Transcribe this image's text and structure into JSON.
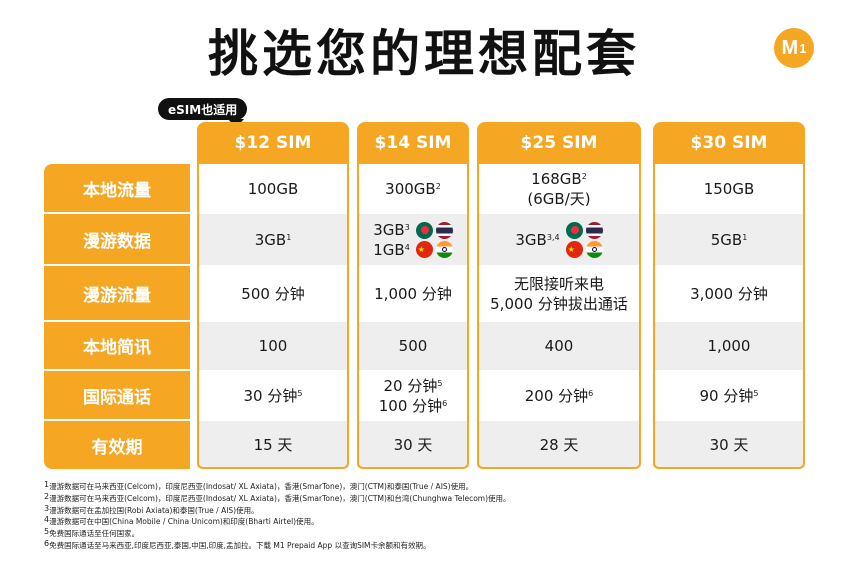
{
  "title": "挑选您的理想配套",
  "logo": {
    "letter": "M",
    "sub": "1"
  },
  "esim_badge": "eSIM也适用",
  "plans": [
    "$12 SIM",
    "$14 SIM",
    "$25 SIM",
    "$30 SIM"
  ],
  "rows": [
    {
      "label": "本地流量",
      "cells": [
        {
          "lines": [
            {
              "text": "100GB",
              "sup": ""
            }
          ]
        },
        {
          "lines": [
            {
              "text": "300GB",
              "sup": "2"
            }
          ]
        },
        {
          "lines": [
            {
              "text": "168GB",
              "sup": "2"
            },
            {
              "text": "(6GB/天)",
              "sup": ""
            }
          ]
        },
        {
          "lines": [
            {
              "text": "150GB",
              "sup": ""
            }
          ]
        }
      ]
    },
    {
      "label": "漫游数据",
      "cells": [
        {
          "lines": [
            {
              "text": "3GB",
              "sup": "1"
            }
          ]
        },
        {
          "lines": [
            {
              "text": "3GB",
              "sup": "3"
            },
            {
              "text": "1GB",
              "sup": "4"
            }
          ]
        },
        {
          "lines": [
            {
              "text": "3GB",
              "sup": "3,4"
            }
          ]
        },
        {
          "lines": [
            {
              "text": "5GB",
              "sup": "1"
            }
          ]
        }
      ]
    },
    {
      "label": "漫游流量",
      "cells": [
        {
          "lines": [
            {
              "text": "500 分钟",
              "sup": ""
            }
          ]
        },
        {
          "lines": [
            {
              "text": "1,000 分钟",
              "sup": ""
            }
          ]
        },
        {
          "lines": [
            {
              "text": "无限接听来电",
              "sup": ""
            },
            {
              "text": "5,000 分钟拔出通话",
              "sup": ""
            }
          ]
        },
        {
          "lines": [
            {
              "text": "3,000 分钟",
              "sup": ""
            }
          ]
        }
      ]
    },
    {
      "label": "本地简讯",
      "cells": [
        {
          "lines": [
            {
              "text": "100",
              "sup": ""
            }
          ]
        },
        {
          "lines": [
            {
              "text": "500",
              "sup": ""
            }
          ]
        },
        {
          "lines": [
            {
              "text": "400",
              "sup": ""
            }
          ]
        },
        {
          "lines": [
            {
              "text": "1,000",
              "sup": ""
            }
          ]
        }
      ]
    },
    {
      "label": "国际通话",
      "cells": [
        {
          "lines": [
            {
              "text": "30 分钟",
              "sup": "5"
            }
          ]
        },
        {
          "lines": [
            {
              "text": "20 分钟",
              "sup": "5"
            },
            {
              "text": "100 分钟",
              "sup": "6"
            }
          ]
        },
        {
          "lines": [
            {
              "text": "200 分钟",
              "sup": "6"
            }
          ]
        },
        {
          "lines": [
            {
              "text": "90 分钟",
              "sup": "5"
            }
          ]
        }
      ]
    },
    {
      "label": "有效期",
      "cells": [
        {
          "lines": [
            {
              "text": "15 天",
              "sup": ""
            }
          ]
        },
        {
          "lines": [
            {
              "text": "30 天",
              "sup": ""
            }
          ]
        },
        {
          "lines": [
            {
              "text": "28 天",
              "sup": ""
            }
          ]
        },
        {
          "lines": [
            {
              "text": "30 天",
              "sup": ""
            }
          ]
        }
      ]
    }
  ],
  "footnotes": [
    {
      "num": "1",
      "text": "漫游数据可在马来西亚(Celcom)，印度尼西亚(Indosat/ XL Axiata)，香港(SmarTone)，澳门(CTM)和泰国(True / AIS)使用。"
    },
    {
      "num": "2",
      "text": "漫游数据可在马来西亚(Celcom)，印度尼西亚(Indosat/ XL Axiata)，香港(SmarTone)，澳门(CTM)和台湾(Chunghwa Telecom)使用。"
    },
    {
      "num": "3",
      "text": "漫游数据可在孟加拉国(Robi Axiata)和泰国(True / AIS)使用。"
    },
    {
      "num": "4",
      "text": "漫游数据可在中国(China Mobile / China Unicom)和印度(Bharti Airtel)使用。"
    },
    {
      "num": "5",
      "text": "免费国际通话至任何国家。"
    },
    {
      "num": "6",
      "text": "免费国际通话至马来西亚,印度尼西亚,泰国,中国,印度,孟加拉。下载 M1 Prepaid App 以查询SIM卡余额和有效期。"
    }
  ]
}
